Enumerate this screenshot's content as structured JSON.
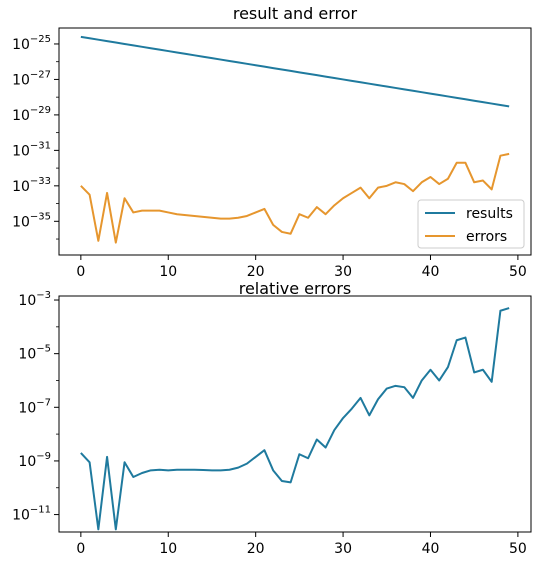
{
  "chart_data": [
    {
      "type": "line",
      "title": "result and error",
      "xlabel": "",
      "ylabel": "",
      "yscale": "log",
      "xlim": [
        -2.5,
        51.5
      ],
      "ylim_exp": [
        -36.9,
        -24.1
      ],
      "xticks": [
        0,
        10,
        20,
        30,
        40,
        50
      ],
      "xtick_labels": [
        "0",
        "10",
        "20",
        "30",
        "40",
        "50"
      ],
      "yticks_exp": [
        -35,
        -33,
        -31,
        -29,
        -27,
        -25
      ],
      "ytick_labels": [
        {
          "base": "10",
          "exp": "−35"
        },
        {
          "base": "10",
          "exp": "−33"
        },
        {
          "base": "10",
          "exp": "−31"
        },
        {
          "base": "10",
          "exp": "−29"
        },
        {
          "base": "10",
          "exp": "−27"
        },
        {
          "base": "10",
          "exp": "−25"
        }
      ],
      "legend_position": "lower right",
      "x": [
        0,
        1,
        2,
        3,
        4,
        5,
        6,
        7,
        8,
        9,
        10,
        11,
        12,
        13,
        14,
        15,
        16,
        17,
        18,
        19,
        20,
        21,
        22,
        23,
        24,
        25,
        26,
        27,
        28,
        29,
        30,
        31,
        32,
        33,
        34,
        35,
        36,
        37,
        38,
        39,
        40,
        41,
        42,
        43,
        44,
        45,
        46,
        47,
        48,
        49
      ],
      "series": [
        {
          "name": "results",
          "color": "#1f7a9e",
          "values_exp": [
            -24.6,
            -24.68,
            -24.76,
            -24.84,
            -24.92,
            -25.0,
            -25.08,
            -25.16,
            -25.24,
            -25.32,
            -25.4,
            -25.48,
            -25.56,
            -25.64,
            -25.72,
            -25.8,
            -25.88,
            -25.96,
            -26.04,
            -26.12,
            -26.2,
            -26.28,
            -26.36,
            -26.44,
            -26.52,
            -26.6,
            -26.68,
            -26.76,
            -26.84,
            -26.92,
            -27.0,
            -27.08,
            -27.16,
            -27.24,
            -27.32,
            -27.4,
            -27.48,
            -27.56,
            -27.64,
            -27.72,
            -27.8,
            -27.88,
            -27.96,
            -28.04,
            -28.12,
            -28.2,
            -28.28,
            -28.36,
            -28.44,
            -28.52
          ]
        },
        {
          "name": "errors",
          "color": "#e6962e",
          "values_exp": [
            -33.0,
            -33.5,
            -36.1,
            -33.4,
            -36.2,
            -33.7,
            -34.5,
            -34.4,
            -34.4,
            -34.4,
            -34.5,
            -34.6,
            -34.65,
            -34.7,
            -34.75,
            -34.8,
            -34.85,
            -34.85,
            -34.8,
            -34.7,
            -34.5,
            -34.3,
            -35.2,
            -35.6,
            -35.7,
            -34.6,
            -34.8,
            -34.2,
            -34.6,
            -34.1,
            -33.7,
            -33.4,
            -33.1,
            -33.7,
            -33.1,
            -33.0,
            -32.8,
            -32.9,
            -33.3,
            -32.8,
            -32.5,
            -32.9,
            -32.6,
            -31.7,
            -31.7,
            -32.8,
            -32.7,
            -33.2,
            -31.3,
            -31.2
          ]
        }
      ]
    },
    {
      "type": "line",
      "title": "relative errors",
      "xlabel": "",
      "ylabel": "",
      "yscale": "log",
      "xlim": [
        -2.5,
        51.5
      ],
      "ylim_exp": [
        -11.65,
        -2.85
      ],
      "xticks": [
        0,
        10,
        20,
        30,
        40,
        50
      ],
      "xtick_labels": [
        "0",
        "10",
        "20",
        "30",
        "40",
        "50"
      ],
      "yticks_exp": [
        -11,
        -9,
        -7,
        -5,
        -3
      ],
      "ytick_labels": [
        {
          "base": "10",
          "exp": "−11"
        },
        {
          "base": "10",
          "exp": "−9"
        },
        {
          "base": "10",
          "exp": "−7"
        },
        {
          "base": "10",
          "exp": "−5"
        },
        {
          "base": "10",
          "exp": "−3"
        }
      ],
      "x": [
        0,
        1,
        2,
        3,
        4,
        5,
        6,
        7,
        8,
        9,
        10,
        11,
        12,
        13,
        14,
        15,
        16,
        17,
        18,
        19,
        20,
        21,
        22,
        23,
        24,
        25,
        26,
        27,
        28,
        29,
        30,
        31,
        32,
        33,
        34,
        35,
        36,
        37,
        38,
        39,
        40,
        41,
        42,
        43,
        44,
        45,
        46,
        47,
        48,
        49
      ],
      "series": [
        {
          "color": "#1f7a9e",
          "values_exp": [
            -8.7,
            -9.05,
            -11.55,
            -8.85,
            -11.55,
            -9.05,
            -9.6,
            -9.45,
            -9.35,
            -9.33,
            -9.35,
            -9.33,
            -9.33,
            -9.33,
            -9.34,
            -9.35,
            -9.35,
            -9.33,
            -9.25,
            -9.1,
            -8.85,
            -8.6,
            -9.35,
            -9.75,
            -9.8,
            -8.75,
            -8.9,
            -8.2,
            -8.5,
            -7.85,
            -7.4,
            -7.05,
            -6.65,
            -7.3,
            -6.7,
            -6.3,
            -6.2,
            -6.25,
            -6.65,
            -6.0,
            -5.6,
            -6.0,
            -5.5,
            -4.5,
            -4.4,
            -5.7,
            -5.6,
            -6.05,
            -3.4,
            -3.3
          ]
        }
      ]
    }
  ]
}
